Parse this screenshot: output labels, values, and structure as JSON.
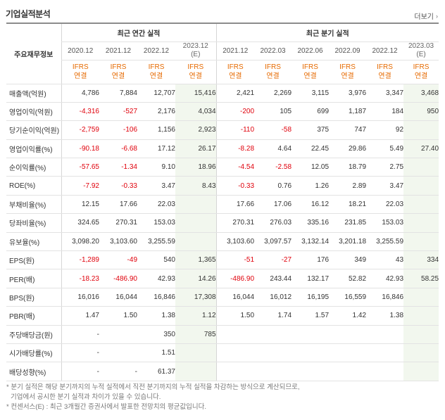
{
  "header": {
    "title": "기업실적분석",
    "more_label": "더보기"
  },
  "table": {
    "row_header_label": "주요재무정보",
    "group_annual": "최근 연간 실적",
    "group_quarter": "최근 분기 실적",
    "periods": [
      "2020.12",
      "2021.12",
      "2022.12",
      "2023.12",
      "2021.12",
      "2022.03",
      "2022.06",
      "2022.09",
      "2022.12",
      "2023.03"
    ],
    "estimate_marks": [
      "",
      "",
      "",
      "(E)",
      "",
      "",
      "",
      "",
      "",
      "(E)"
    ],
    "accounting_top": "IFRS",
    "accounting_bottom": "연결",
    "rows": [
      {
        "label": "매출액(억원)",
        "values": [
          "4,786",
          "7,884",
          "12,707",
          "15,416",
          "2,421",
          "2,269",
          "3,115",
          "3,976",
          "3,347",
          "3,468"
        ]
      },
      {
        "label": "영업이익(억원)",
        "values": [
          "-4,316",
          "-527",
          "2,176",
          "4,034",
          "-200",
          "105",
          "699",
          "1,187",
          "184",
          "950"
        ]
      },
      {
        "label": "당기순이익(억원)",
        "values": [
          "-2,759",
          "-106",
          "1,156",
          "2,923",
          "-110",
          "-58",
          "375",
          "747",
          "92",
          ""
        ]
      },
      {
        "label": "영업이익률(%)",
        "values": [
          "-90.18",
          "-6.68",
          "17.12",
          "26.17",
          "-8.28",
          "4.64",
          "22.45",
          "29.86",
          "5.49",
          "27.40"
        ]
      },
      {
        "label": "순이익률(%)",
        "values": [
          "-57.65",
          "-1.34",
          "9.10",
          "18.96",
          "-4.54",
          "-2.58",
          "12.05",
          "18.79",
          "2.75",
          ""
        ]
      },
      {
        "label": "ROE(%)",
        "values": [
          "-7.92",
          "-0.33",
          "3.47",
          "8.43",
          "-0.33",
          "0.76",
          "1.26",
          "2.89",
          "3.47",
          ""
        ]
      },
      {
        "label": "부채비율(%)",
        "values": [
          "12.15",
          "17.66",
          "22.03",
          "",
          "17.66",
          "17.06",
          "16.12",
          "18.21",
          "22.03",
          ""
        ]
      },
      {
        "label": "당좌비율(%)",
        "values": [
          "324.65",
          "270.31",
          "153.03",
          "",
          "270.31",
          "276.03",
          "335.16",
          "231.85",
          "153.03",
          ""
        ]
      },
      {
        "label": "유보율(%)",
        "values": [
          "3,098.20",
          "3,103.60",
          "3,255.59",
          "",
          "3,103.60",
          "3,097.57",
          "3,132.14",
          "3,201.18",
          "3,255.59",
          ""
        ]
      },
      {
        "label": "EPS(원)",
        "values": [
          "-1,289",
          "-49",
          "540",
          "1,365",
          "-51",
          "-27",
          "176",
          "349",
          "43",
          "334"
        ]
      },
      {
        "label": "PER(배)",
        "values": [
          "-18.23",
          "-486.90",
          "42.93",
          "14.26",
          "-486.90",
          "243.44",
          "132.17",
          "52.82",
          "42.93",
          "58.25"
        ]
      },
      {
        "label": "BPS(원)",
        "values": [
          "16,016",
          "16,044",
          "16,846",
          "17,308",
          "16,044",
          "16,012",
          "16,195",
          "16,559",
          "16,846",
          ""
        ]
      },
      {
        "label": "PBR(배)",
        "values": [
          "1.47",
          "1.50",
          "1.38",
          "1.12",
          "1.50",
          "1.74",
          "1.57",
          "1.42",
          "1.38",
          ""
        ]
      },
      {
        "label": "주당배당금(원)",
        "values": [
          "-",
          "",
          "350",
          "785",
          "",
          "",
          "",
          "",
          "",
          ""
        ]
      },
      {
        "label": "시가배당률(%)",
        "values": [
          "-",
          "",
          "1.51",
          "",
          "",
          "",
          "",
          "",
          "",
          ""
        ]
      },
      {
        "label": "배당성향(%)",
        "values": [
          "-",
          "-",
          "61.37",
          "",
          "",
          "",
          "",
          "",
          "",
          ""
        ]
      }
    ]
  },
  "footnotes": [
    "* 분기 실적은 해당 분기까지의 누적 실적에서 직전 분기까지의 누적 실적을 차감하는 방식으로 계산되므로,",
    "  기업에서 공시한 분기 실적과 차이가 있을 수 있습니다.",
    "* 컨센서스(E) : 최근 3개월간 증권사에서 발표한 전망치의 평균값입니다."
  ]
}
